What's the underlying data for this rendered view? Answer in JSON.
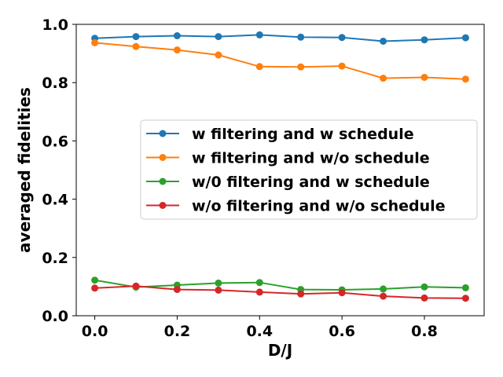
{
  "chart_data": {
    "type": "line",
    "title": "",
    "xlabel": "D/J",
    "ylabel": "averaged fidelities",
    "xlim": [
      -0.045,
      0.945
    ],
    "ylim": [
      0.0,
      1.0
    ],
    "x": [
      0.0,
      0.1,
      0.2,
      0.3,
      0.4,
      0.5,
      0.6,
      0.7,
      0.8,
      0.9
    ],
    "xticks": [
      "0.0",
      "0.2",
      "0.4",
      "0.6",
      "0.8"
    ],
    "xtick_values": [
      0.0,
      0.2,
      0.4,
      0.6,
      0.8
    ],
    "yticks": [
      "0.0",
      "0.2",
      "0.4",
      "0.6",
      "0.8",
      "1.0"
    ],
    "ytick_values": [
      0.0,
      0.2,
      0.4,
      0.6,
      0.8,
      1.0
    ],
    "grid": false,
    "legend_position": "center-right",
    "series": [
      {
        "name": "w filtering and w schedule",
        "color": "#1f77b4",
        "values": [
          0.952,
          0.958,
          0.961,
          0.958,
          0.964,
          0.956,
          0.955,
          0.942,
          0.947,
          0.954
        ]
      },
      {
        "name": "w filtering and w/o schedule",
        "color": "#ff7f0e",
        "values": [
          0.937,
          0.924,
          0.912,
          0.895,
          0.855,
          0.854,
          0.857,
          0.815,
          0.818,
          0.812
        ]
      },
      {
        "name": "w/0 filtering and w schedule",
        "color": "#2ca02c",
        "values": [
          0.122,
          0.098,
          0.105,
          0.112,
          0.114,
          0.09,
          0.089,
          0.092,
          0.099,
          0.096
        ]
      },
      {
        "name": "w/o filtering and w/o schedule",
        "color": "#d62728",
        "values": [
          0.095,
          0.102,
          0.09,
          0.088,
          0.081,
          0.075,
          0.079,
          0.067,
          0.061,
          0.06
        ]
      }
    ]
  }
}
